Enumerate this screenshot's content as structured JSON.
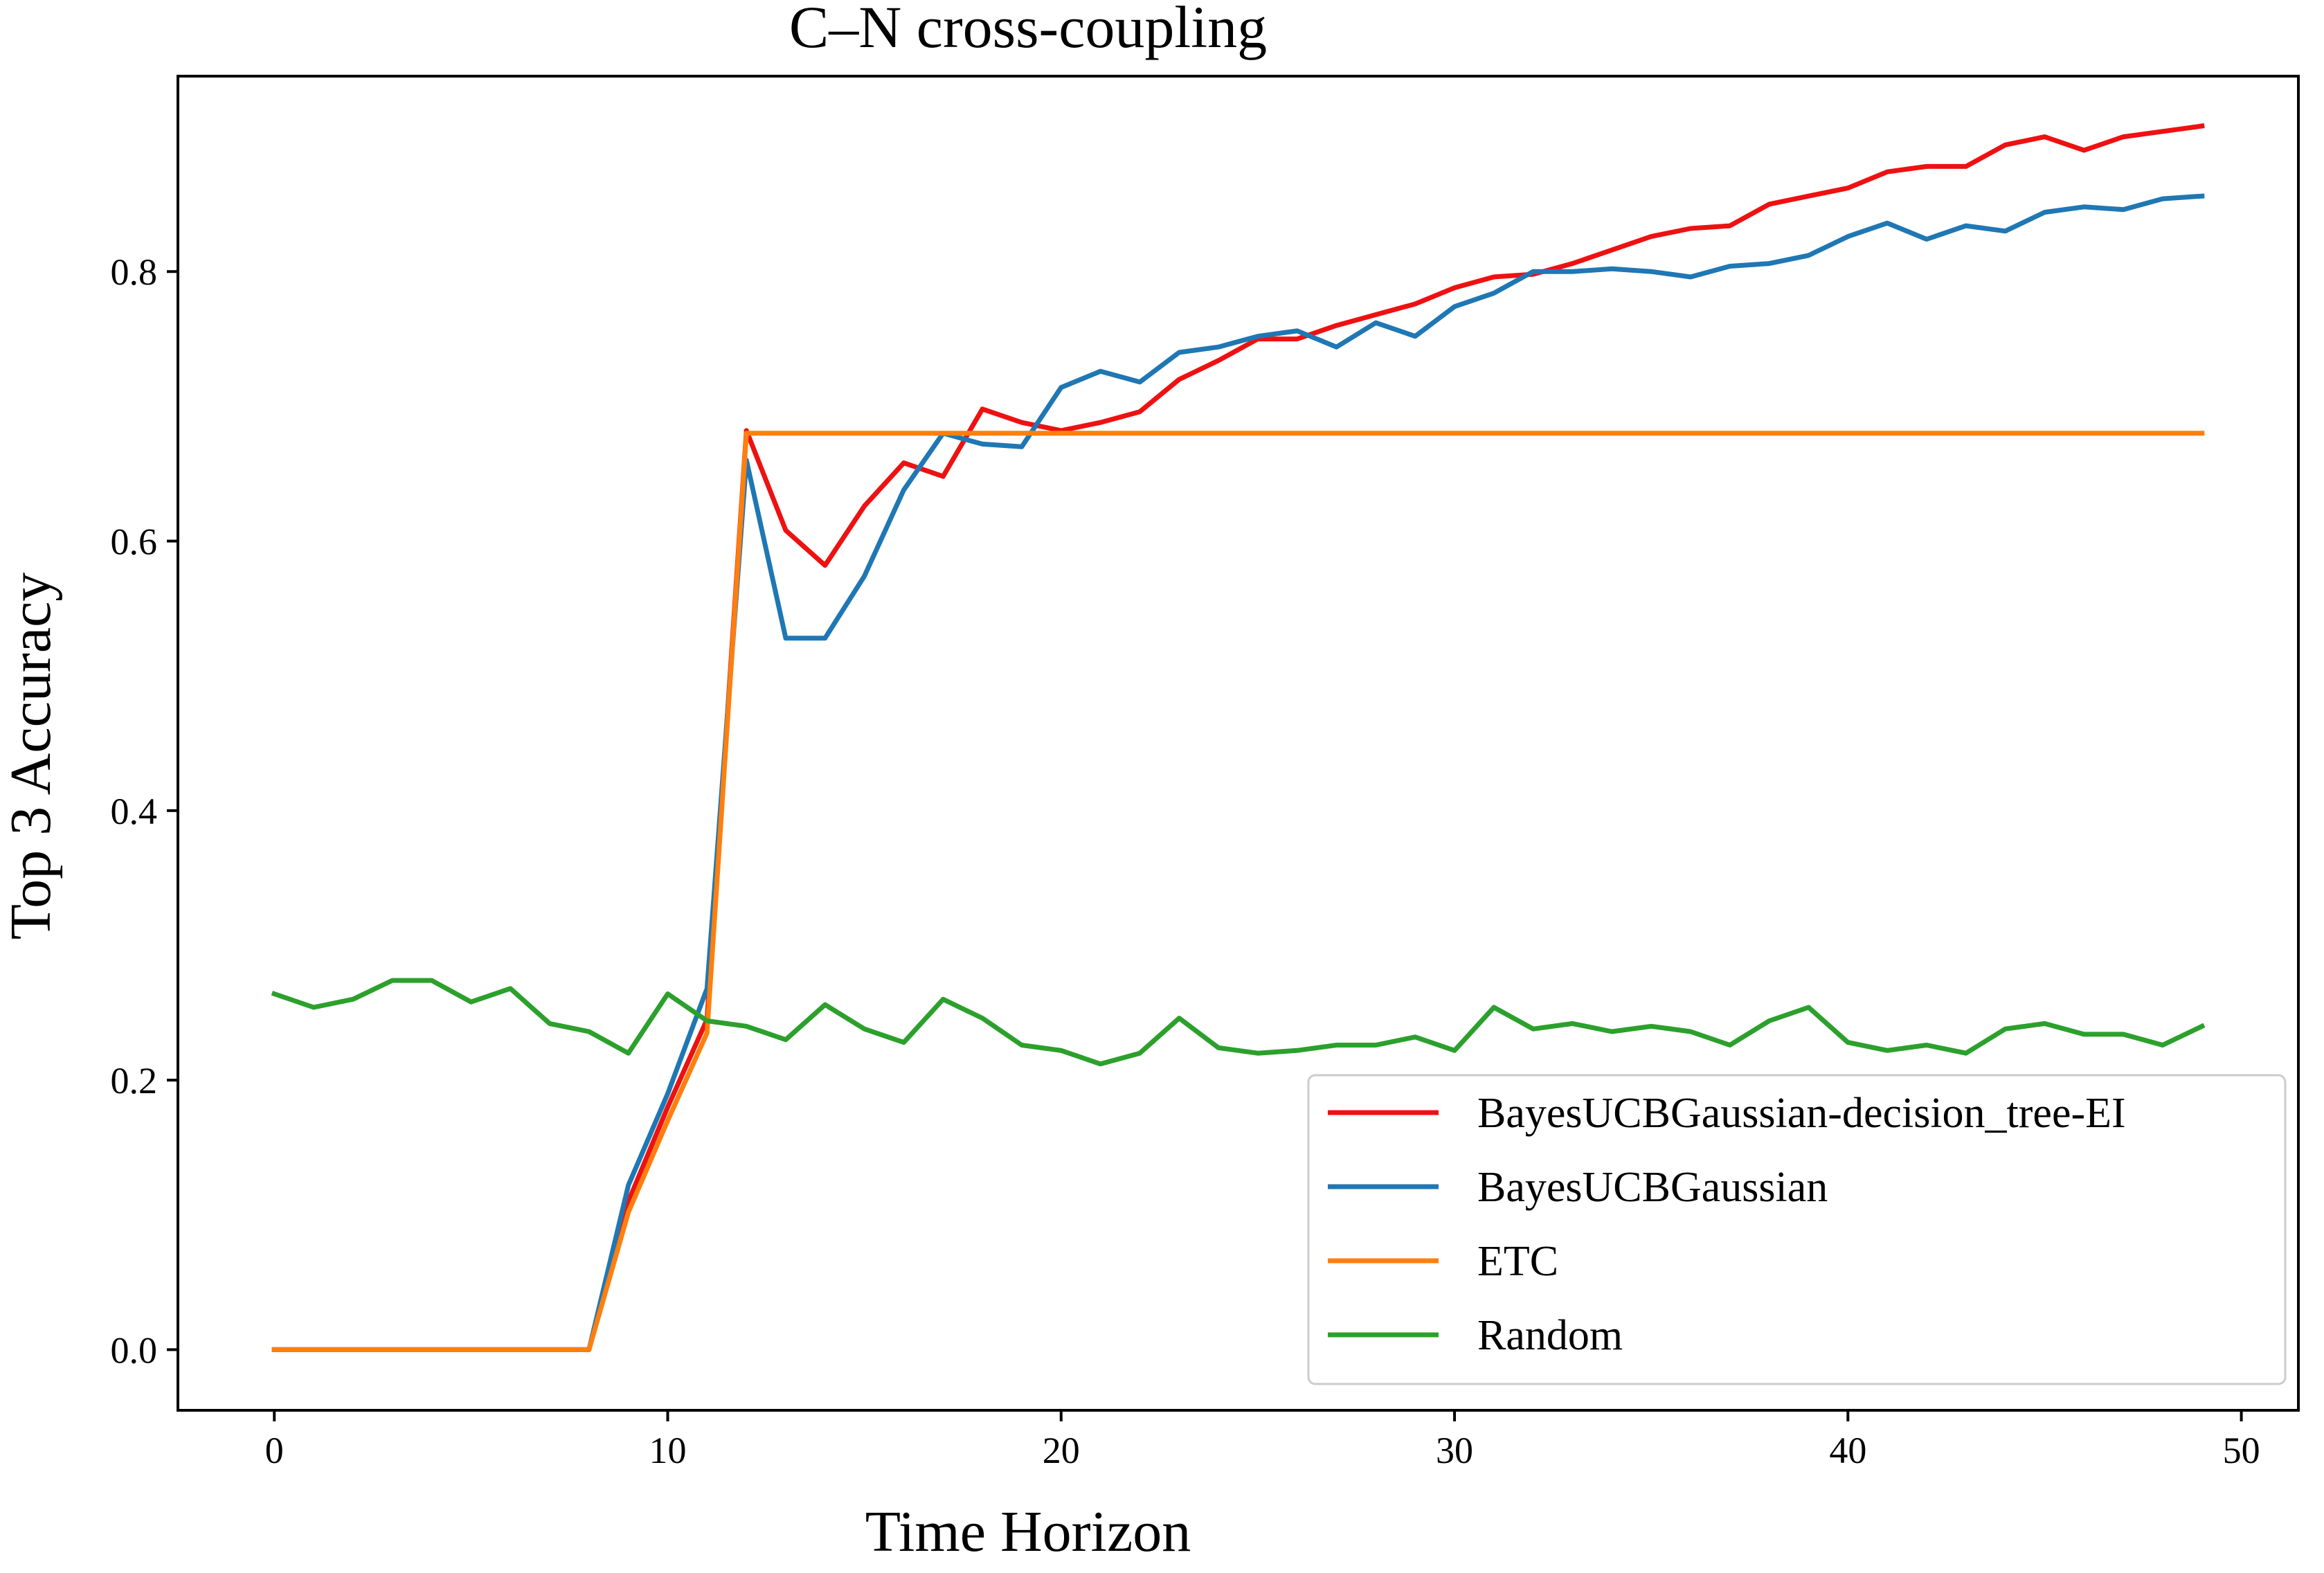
{
  "chart_data": {
    "type": "line",
    "title": "C–N cross-coupling",
    "xlabel": "Time Horizon",
    "ylabel": "Top 3 Accuracy",
    "xlim": [
      -2.45,
      51.45
    ],
    "ylim": [
      -0.045,
      0.945
    ],
    "xticks": [
      0,
      10,
      20,
      30,
      40,
      50
    ],
    "yticks": [
      0.0,
      0.2,
      0.4,
      0.6,
      0.8
    ],
    "ytick_labels": [
      "0.0",
      "0.2",
      "0.4",
      "0.6",
      "0.8"
    ],
    "xtick_labels": [
      "0",
      "10",
      "20",
      "30",
      "40",
      "50"
    ],
    "grid": false,
    "legend_position": "lower-right",
    "x": [
      0,
      1,
      2,
      3,
      4,
      5,
      6,
      7,
      8,
      9,
      10,
      11,
      12,
      13,
      14,
      15,
      16,
      17,
      18,
      19,
      20,
      21,
      22,
      23,
      24,
      25,
      26,
      27,
      28,
      29,
      30,
      31,
      32,
      33,
      34,
      35,
      36,
      37,
      38,
      39,
      40,
      41,
      42,
      43,
      44,
      45,
      46,
      47,
      48,
      49
    ],
    "series": [
      {
        "name": "BayesUCBGaussian-decision_tree-EI",
        "color": "#ee1111",
        "values": [
          0,
          0,
          0,
          0,
          0,
          0,
          0,
          0,
          0,
          0.11,
          0.18,
          0.245,
          0.682,
          0.608,
          0.582,
          0.626,
          0.658,
          0.648,
          0.698,
          0.688,
          0.682,
          0.688,
          0.696,
          0.72,
          0.734,
          0.75,
          0.75,
          0.76,
          0.768,
          0.776,
          0.788,
          0.796,
          0.798,
          0.806,
          0.816,
          0.826,
          0.832,
          0.834,
          0.85,
          0.856,
          0.862,
          0.874,
          0.878,
          0.878,
          0.894,
          0.9,
          0.89,
          0.9,
          0.904,
          0.908
        ]
      },
      {
        "name": "BayesUCBGaussian",
        "color": "#1f77b4",
        "values": [
          0,
          0,
          0,
          0,
          0,
          0,
          0,
          0,
          0,
          0.122,
          0.19,
          0.268,
          0.66,
          0.528,
          0.528,
          0.574,
          0.638,
          0.68,
          0.672,
          0.67,
          0.714,
          0.726,
          0.718,
          0.74,
          0.744,
          0.752,
          0.756,
          0.744,
          0.762,
          0.752,
          0.774,
          0.784,
          0.8,
          0.8,
          0.802,
          0.8,
          0.796,
          0.804,
          0.806,
          0.812,
          0.826,
          0.836,
          0.824,
          0.834,
          0.83,
          0.844,
          0.848,
          0.846,
          0.854,
          0.856
        ]
      },
      {
        "name": "ETC",
        "color": "#ff7f0e",
        "values": [
          0,
          0,
          0,
          0,
          0,
          0,
          0,
          0,
          0,
          0.102,
          0.17,
          0.235,
          0.68,
          0.68,
          0.68,
          0.68,
          0.68,
          0.68,
          0.68,
          0.68,
          0.68,
          0.68,
          0.68,
          0.68,
          0.68,
          0.68,
          0.68,
          0.68,
          0.68,
          0.68,
          0.68,
          0.68,
          0.68,
          0.68,
          0.68,
          0.68,
          0.68,
          0.68,
          0.68,
          0.68,
          0.68,
          0.68,
          0.68,
          0.68,
          0.68,
          0.68,
          0.68,
          0.68,
          0.68,
          0.68
        ]
      },
      {
        "name": "Random",
        "color": "#2ca02c",
        "values": [
          0.264,
          0.254,
          0.26,
          0.274,
          0.274,
          0.258,
          0.268,
          0.242,
          0.236,
          0.22,
          0.264,
          0.244,
          0.24,
          0.23,
          0.256,
          0.238,
          0.228,
          0.26,
          0.246,
          0.226,
          0.222,
          0.212,
          0.22,
          0.246,
          0.224,
          0.22,
          0.222,
          0.226,
          0.226,
          0.232,
          0.222,
          0.254,
          0.238,
          0.242,
          0.236,
          0.24,
          0.236,
          0.226,
          0.244,
          0.254,
          0.228,
          0.222,
          0.226,
          0.22,
          0.238,
          0.242,
          0.234,
          0.234,
          0.226,
          0.24
        ]
      }
    ]
  }
}
